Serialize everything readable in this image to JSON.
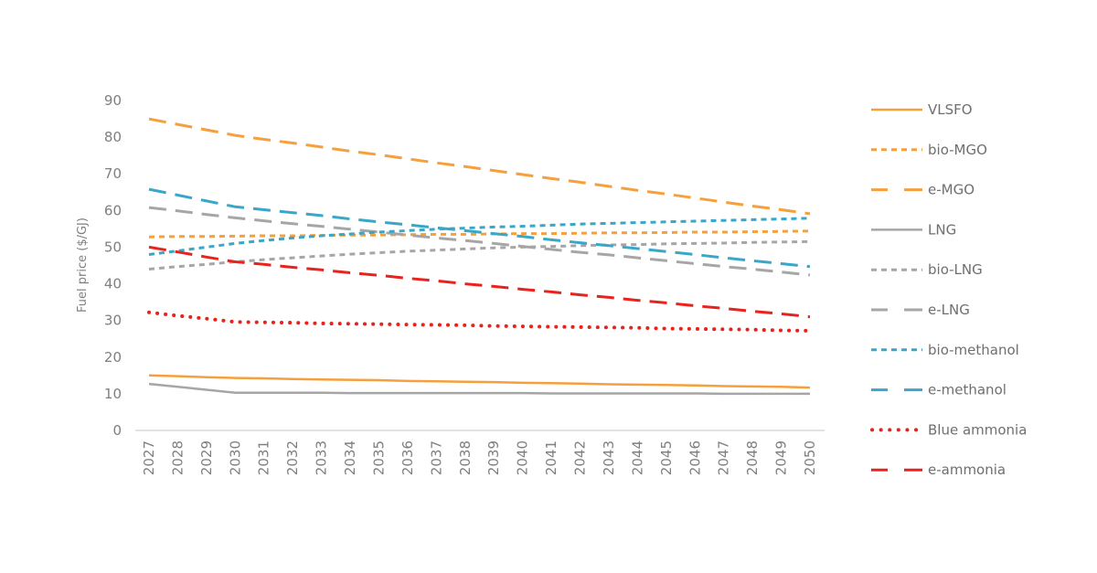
{
  "chart_data": {
    "type": "line",
    "title": "",
    "xlabel": "",
    "ylabel": "Fuel price ($/GJ)",
    "ylim": [
      0,
      90
    ],
    "yticks": [
      0,
      10,
      20,
      30,
      40,
      50,
      60,
      70,
      80,
      90
    ],
    "grid": false,
    "legend_position": "right",
    "x": [
      "2027",
      "2028",
      "2029",
      "2030",
      "2031",
      "2032",
      "2033",
      "2034",
      "2035",
      "2036",
      "2037",
      "2038",
      "2039",
      "2040",
      "2041",
      "2042",
      "2043",
      "2044",
      "2045",
      "2046",
      "2047",
      "2048",
      "2049",
      "2050"
    ],
    "series": [
      {
        "name": "VLSFO",
        "color": "#f5a03c",
        "dash": "solid",
        "values": [
          15.0,
          14.8,
          14.5,
          14.3,
          14.2,
          14.0,
          13.9,
          13.8,
          13.7,
          13.5,
          13.4,
          13.3,
          13.2,
          13.0,
          12.9,
          12.8,
          12.6,
          12.5,
          12.4,
          12.3,
          12.1,
          12.0,
          11.9,
          11.7
        ]
      },
      {
        "name": "bio-MGO",
        "color": "#f5a03c",
        "dash": "short",
        "values": [
          52.8,
          52.9,
          52.9,
          53.0,
          53.1,
          53.1,
          53.2,
          53.3,
          53.3,
          53.4,
          53.5,
          53.5,
          53.6,
          53.7,
          53.7,
          53.8,
          53.9,
          53.9,
          54.0,
          54.1,
          54.1,
          54.2,
          54.3,
          54.4
        ]
      },
      {
        "name": "e-MGO",
        "color": "#f5a03c",
        "dash": "long",
        "values": [
          85.0,
          83.5,
          82.0,
          80.5,
          79.4,
          78.4,
          77.3,
          76.2,
          75.2,
          74.1,
          73.0,
          72.0,
          70.9,
          69.8,
          68.7,
          67.7,
          66.6,
          65.5,
          64.5,
          63.4,
          62.3,
          61.2,
          60.2,
          59.1
        ]
      },
      {
        "name": "LNG",
        "color": "#a6a6a6",
        "dash": "solid",
        "values": [
          12.7,
          11.9,
          11.1,
          10.3,
          10.3,
          10.3,
          10.3,
          10.2,
          10.2,
          10.2,
          10.2,
          10.2,
          10.2,
          10.2,
          10.1,
          10.1,
          10.1,
          10.1,
          10.1,
          10.1,
          10.0,
          10.0,
          10.0,
          10.0
        ]
      },
      {
        "name": "bio-LNG",
        "color": "#a6a6a6",
        "dash": "short",
        "values": [
          44.0,
          44.7,
          45.3,
          46.0,
          46.6,
          47.1,
          47.6,
          48.1,
          48.5,
          48.9,
          49.2,
          49.5,
          49.8,
          50.0,
          50.2,
          50.4,
          50.6,
          50.7,
          50.9,
          51.0,
          51.1,
          51.3,
          51.4,
          51.5
        ]
      },
      {
        "name": "e-LNG",
        "color": "#a6a6a6",
        "dash": "long",
        "values": [
          60.8,
          59.9,
          58.9,
          58.0,
          57.2,
          56.4,
          55.7,
          54.9,
          54.1,
          53.3,
          52.5,
          51.8,
          51.0,
          50.2,
          49.4,
          48.6,
          47.9,
          47.1,
          46.3,
          45.5,
          44.7,
          44.0,
          43.2,
          42.4
        ]
      },
      {
        "name": "bio-methanol",
        "color": "#3aa6c8",
        "dash": "short",
        "values": [
          48.0,
          49.0,
          50.0,
          51.0,
          51.8,
          52.5,
          53.1,
          53.6,
          54.1,
          54.5,
          54.9,
          55.2,
          55.5,
          55.7,
          56.0,
          56.3,
          56.5,
          56.7,
          56.9,
          57.1,
          57.3,
          57.5,
          57.7,
          57.9
        ]
      },
      {
        "name": "e-methanol",
        "color": "#3aa6c8",
        "dash": "long",
        "values": [
          65.8,
          64.2,
          62.6,
          61.0,
          60.2,
          59.4,
          58.6,
          57.7,
          56.9,
          56.1,
          55.3,
          54.5,
          53.7,
          52.9,
          52.0,
          51.2,
          50.4,
          49.6,
          48.8,
          48.0,
          47.1,
          46.3,
          45.5,
          44.7
        ]
      },
      {
        "name": "Blue ammonia",
        "color": "#e8221c",
        "dash": "dotted",
        "values": [
          32.2,
          31.3,
          30.5,
          29.6,
          29.5,
          29.4,
          29.2,
          29.1,
          29.0,
          28.9,
          28.8,
          28.7,
          28.5,
          28.4,
          28.3,
          28.2,
          28.1,
          28.0,
          27.8,
          27.7,
          27.6,
          27.5,
          27.3,
          27.2
        ]
      },
      {
        "name": "e-ammonia",
        "color": "#e8221c",
        "dash": "long",
        "values": [
          50.0,
          48.7,
          47.3,
          46.0,
          45.3,
          44.5,
          43.8,
          43.0,
          42.3,
          41.5,
          40.8,
          40.0,
          39.3,
          38.5,
          37.8,
          37.0,
          36.3,
          35.5,
          34.8,
          34.0,
          33.3,
          32.5,
          31.8,
          31.0
        ]
      }
    ]
  }
}
